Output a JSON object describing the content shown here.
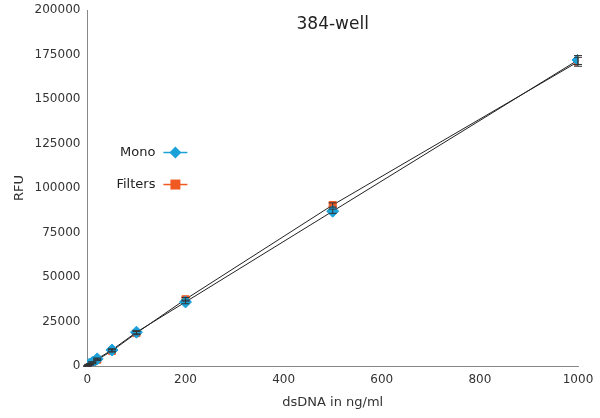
{
  "chart_data": {
    "type": "scatter",
    "title": "384-well",
    "x_label": "dsDNA in ng/ml",
    "y_label": "RFU",
    "x": [
      0,
      2,
      5,
      10,
      20,
      50,
      100,
      200,
      500,
      1000
    ],
    "series": [
      {
        "name": "Mono",
        "color": "#1ba1d8",
        "marker": "diamond",
        "values": [
          0,
          700,
          1000,
          2000,
          4000,
          9000,
          19000,
          36000,
          87000,
          172000
        ],
        "errors": [
          100,
          200,
          300,
          400,
          500,
          700,
          900,
          1000,
          1200,
          2500
        ]
      },
      {
        "name": "Filters",
        "color": "#f05a22",
        "marker": "square",
        "values": [
          0,
          600,
          900,
          1700,
          3500,
          8500,
          18500,
          37500,
          90500,
          171000
        ],
        "errors": [
          100,
          200,
          300,
          400,
          500,
          700,
          900,
          1000,
          1200,
          2500
        ]
      }
    ],
    "xlim": [
      0,
      1000
    ],
    "xticks": [
      0,
      200,
      400,
      600,
      800,
      1000
    ],
    "ylim": [
      0,
      200000
    ],
    "yticks": [
      0,
      25000,
      50000,
      75000,
      100000,
      125000,
      150000,
      175000,
      200000
    ],
    "grid": false,
    "legend": "left"
  }
}
